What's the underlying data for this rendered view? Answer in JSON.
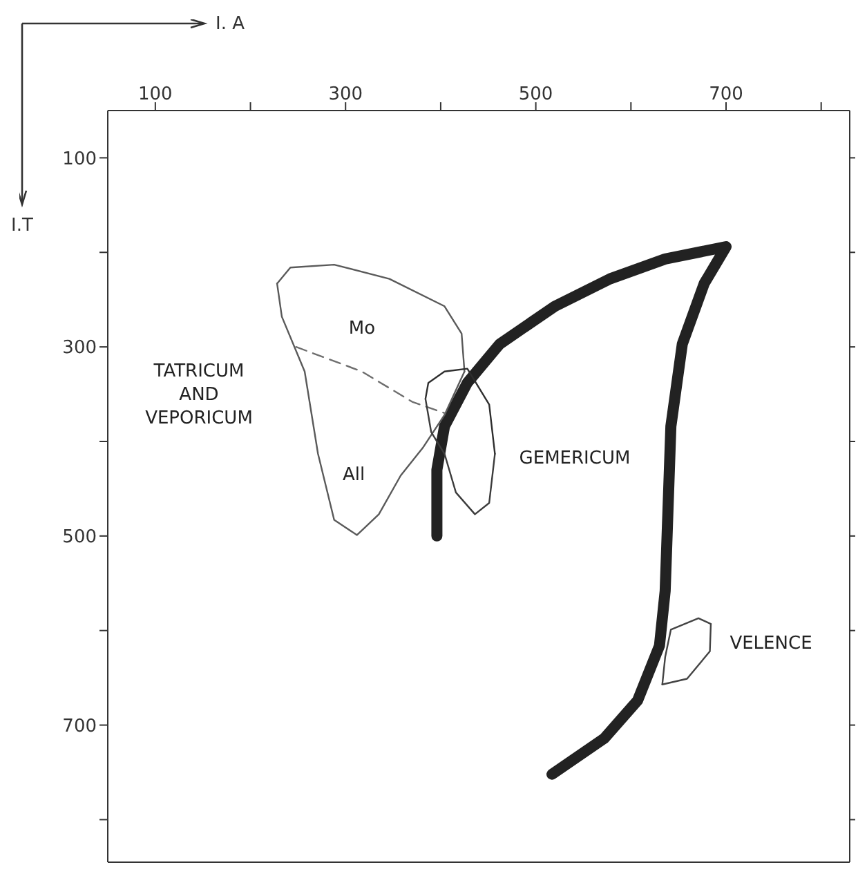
{
  "chart_data": {
    "type": "line",
    "xlabel": "I. A",
    "ylabel": "I.T",
    "xlim": [
      50,
      830
    ],
    "ylim": [
      845,
      50
    ],
    "xticks": [
      100,
      {
        "value": 200,
        "label": null
      },
      300,
      {
        "value": 400,
        "label": null
      },
      500,
      {
        "value": 600,
        "label": null
      },
      700,
      {
        "value": 800,
        "label": null
      }
    ],
    "yticks": [
      100,
      {
        "value": 200,
        "label": null
      },
      300,
      {
        "value": 400,
        "label": null
      },
      500,
      {
        "value": 600,
        "label": null
      },
      700,
      {
        "value": 800,
        "label": null
      }
    ],
    "grid": false,
    "legend": false,
    "marker": "none",
    "line_style": "solid",
    "series": [
      {
        "color": "#222222",
        "x": [
          396,
          396,
          404,
          428,
          462,
          520,
          578,
          636,
          700,
          677,
          654,
          642,
          639,
          636,
          630,
          607,
          572,
          517
        ],
        "values": [
          500,
          430,
          384,
          338,
          297,
          257,
          228,
          207,
          194,
          233,
          297,
          384,
          471,
          558,
          616,
          674,
          714,
          752
        ]
      },
      {
        "color": "#5a5a5a",
        "x": [
          228,
          242,
          288,
          346,
          404,
          422,
          425
        ],
        "values": [
          233,
          216,
          213,
          228,
          257,
          286,
          326
        ]
      },
      {
        "color": "#5a5a5a",
        "x": [
          228,
          233,
          257,
          271,
          288,
          312,
          335,
          358,
          381,
          404,
          425
        ],
        "values": [
          233,
          268,
          326,
          413,
          483,
          499,
          477,
          436,
          407,
          372,
          326
        ]
      },
      {
        "color": "#6e6e6e",
        "line_style": "dashed",
        "x": [
          248,
          317,
          370,
          404
        ],
        "values": [
          300,
          326,
          358,
          370
        ]
      },
      {
        "color": "#2e2e2e",
        "x": [
          384,
          387,
          404,
          428,
          451,
          457
        ],
        "values": [
          355,
          338,
          326,
          323,
          361,
          413
        ]
      },
      {
        "color": "#3c3c3c",
        "x": [
          384,
          390,
          404,
          416,
          436,
          451,
          457
        ],
        "values": [
          355,
          390,
          413,
          454,
          477,
          465,
          413
        ]
      },
      {
        "color": "#444444",
        "x": [
          633,
          636,
          642,
          671,
          684
        ],
        "values": [
          657,
          628,
          599,
          587,
          593
        ]
      },
      {
        "color": "#444444",
        "x": [
          633,
          659,
          683,
          684
        ],
        "values": [
          657,
          651,
          622,
          593
        ]
      }
    ],
    "annotations": [
      "Mo",
      "All",
      "TATRICUM AND VEPORICUM",
      "GEMERICUM",
      "VELENCE"
    ]
  }
}
